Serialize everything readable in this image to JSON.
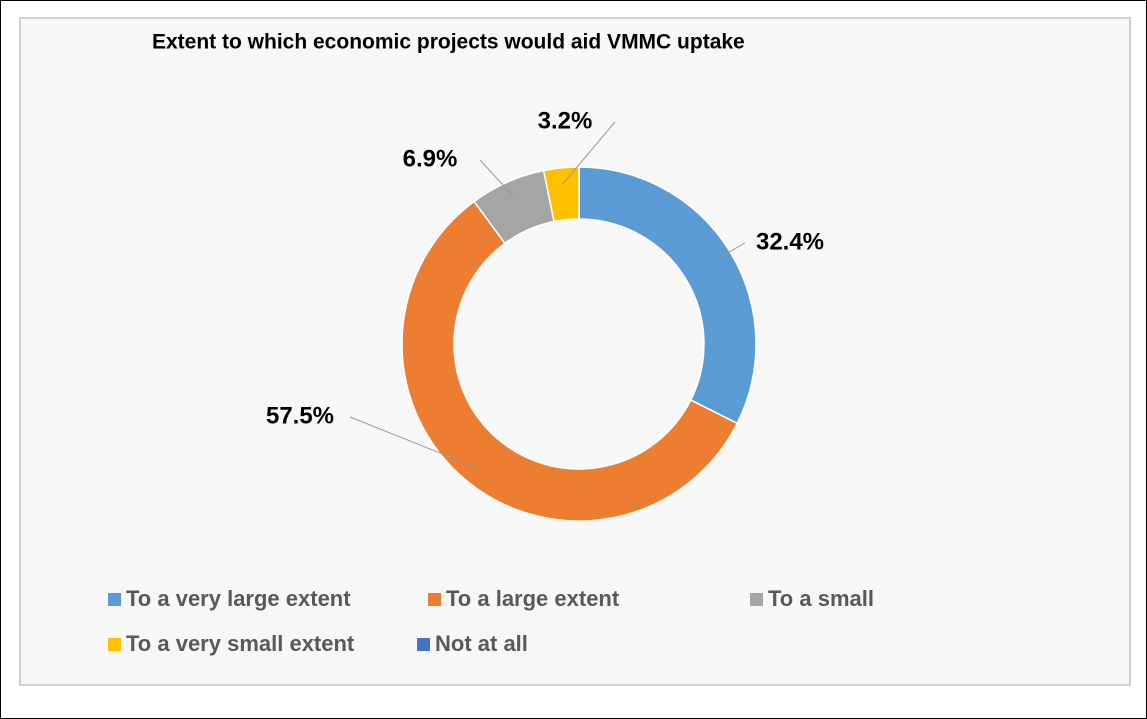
{
  "chart_data": {
    "type": "pie",
    "title": "Extent to which economic projects would aid  VMMC uptake",
    "categories": [
      "To a very large extent",
      "To a large extent",
      "To a small",
      "To a very small extent",
      "Not at all"
    ],
    "values": [
      32.4,
      57.5,
      6.9,
      3.2,
      0
    ],
    "value_labels": [
      "32.4%",
      "57.5%",
      "6.9%",
      "3.2%",
      null
    ],
    "colors": [
      "#5b9bd5",
      "#ed7d31",
      "#a5a5a5",
      "#ffc000",
      "#4472c4"
    ],
    "donut": true,
    "legend": "bottom"
  }
}
